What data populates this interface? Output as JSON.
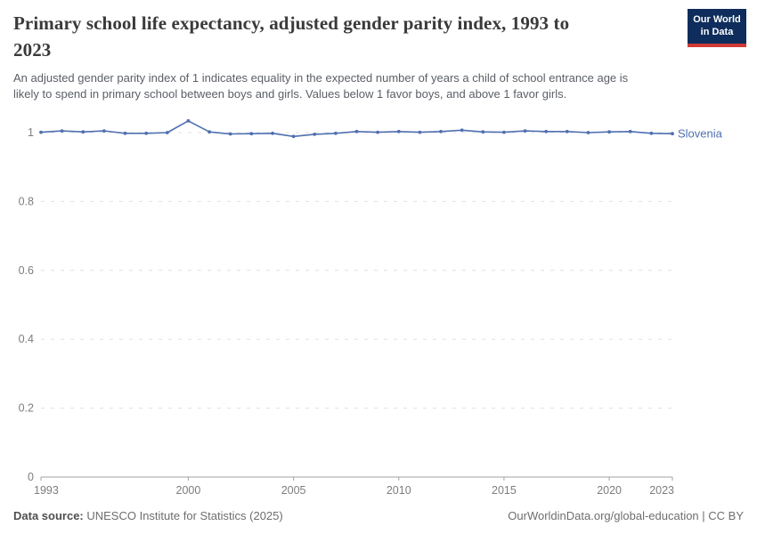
{
  "header": {
    "title": {
      "line1": "Primary school life expectancy, adjusted gender parity index, 1993 to",
      "line2": "2023"
    },
    "logo": {
      "line1": "Our World",
      "line2": "in Data"
    }
  },
  "subtitle": {
    "line1": "An adjusted gender parity index of 1 indicates equality in the expected number of years a child of school entrance age is",
    "line2": "likely to spend in primary school between boys and girls. Values below 1 favor boys, and above 1 favor girls."
  },
  "chart_data": {
    "type": "line",
    "title": "Primary school life expectancy, adjusted gender parity index, 1993 to 2023",
    "x": [
      1993,
      1994,
      1995,
      1996,
      1997,
      1998,
      1999,
      2000,
      2001,
      2002,
      2003,
      2004,
      2005,
      2006,
      2007,
      2008,
      2009,
      2010,
      2011,
      2012,
      2013,
      2014,
      2015,
      2016,
      2017,
      2018,
      2019,
      2020,
      2021,
      2022,
      2023
    ],
    "series": [
      {
        "name": "Slovenia",
        "color": "#4f6fb1",
        "values": [
          1.001,
          1.005,
          1.002,
          1.005,
          0.998,
          0.998,
          1.0,
          1.034,
          1.002,
          0.996,
          0.997,
          0.998,
          0.989,
          0.995,
          0.998,
          1.003,
          1.001,
          1.003,
          1.001,
          1.003,
          1.007,
          1.002,
          1.001,
          1.005,
          1.003,
          1.003,
          1.0,
          1.002,
          1.003,
          0.998,
          0.997
        ]
      }
    ],
    "xlabel": "",
    "ylabel": "",
    "ylim": [
      0,
      1
    ],
    "yticks": [
      0,
      0.2,
      0.4,
      0.6,
      0.8,
      1
    ],
    "ytick_labels": [
      "0",
      "0.2",
      "0.4",
      "0.6",
      "0.8",
      "1"
    ],
    "xticks": [
      1993,
      2000,
      2005,
      2010,
      2015,
      2020,
      2023
    ],
    "grid": "horizontal-dashed",
    "legend_position": "end-of-line-label",
    "colors": {
      "line": "#4f6fb1",
      "gridline": "#e0e0e0",
      "axis": "#a3a3a3",
      "tick_label": "#7d7d7d"
    }
  },
  "footer": {
    "source_label": "Data source:",
    "source_text": " UNESCO Institute for Statistics (2025)",
    "attribution": "OurWorldinData.org/global-education | CC BY"
  }
}
